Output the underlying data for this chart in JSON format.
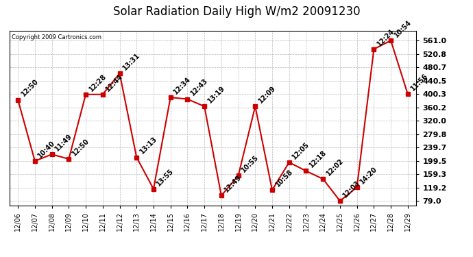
{
  "title": "Solar Radiation Daily High W/m2 20091230",
  "copyright": "Copyright 2009 Cartronics.com",
  "dates": [
    "12/06",
    "12/07",
    "12/08",
    "12/09",
    "12/10",
    "12/11",
    "12/12",
    "12/13",
    "12/14",
    "12/15",
    "12/16",
    "12/17",
    "12/18",
    "12/19",
    "12/20",
    "12/21",
    "12/22",
    "12/23",
    "12/24",
    "12/25",
    "12/26",
    "12/27",
    "12/28",
    "12/29"
  ],
  "values": [
    383,
    199,
    219,
    205,
    399,
    399,
    462,
    210,
    115,
    390,
    385,
    363,
    95,
    155,
    363,
    112,
    195,
    169,
    145,
    79,
    120,
    535,
    561,
    400
  ],
  "labels": [
    "12:50",
    "10:40",
    "11:49",
    "12:50",
    "12:28",
    "12:44",
    "13:31",
    "13:13",
    "13:55",
    "12:34",
    "12:43",
    "13:19",
    "12:49",
    "10:55",
    "12:09",
    "10:58",
    "12:05",
    "12:18",
    "12:02",
    "12:03",
    "14:20",
    "12:24",
    "10:54",
    "11:56"
  ],
  "line_color": "#cc0000",
  "marker_color": "#cc0000",
  "grid_color": "#bbbbbb",
  "bg_color": "#ffffff",
  "title_fontsize": 12,
  "label_fontsize": 7,
  "yticks": [
    79.0,
    119.2,
    159.3,
    199.5,
    239.7,
    279.8,
    320.0,
    360.2,
    400.3,
    440.5,
    480.7,
    520.8,
    561.0
  ],
  "ylim": [
    65,
    590
  ],
  "figsize": [
    6.9,
    3.75
  ],
  "dpi": 100
}
